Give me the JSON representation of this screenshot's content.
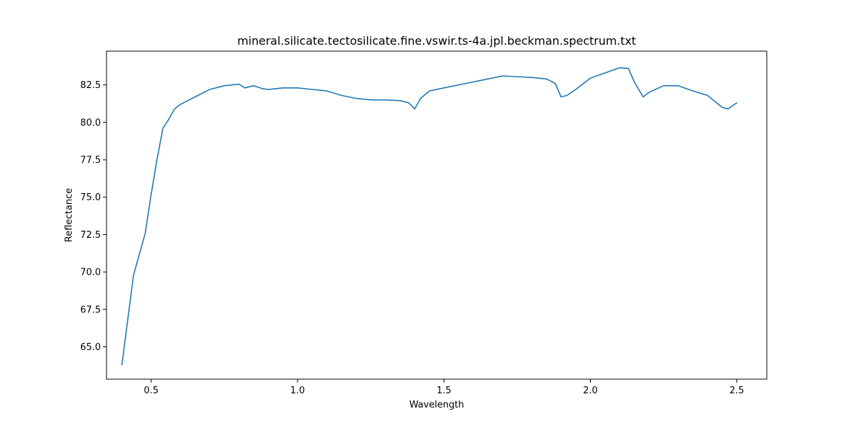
{
  "chart_data": {
    "type": "line",
    "title": "mineral.silicate.tectosilicate.fine.vswir.ts-4a.jpl.beckman.spectrum.txt",
    "xlabel": "Wavelength",
    "ylabel": "Reflectance",
    "xlim": [
      0.3475,
      2.6025
    ],
    "ylim": [
      62.84,
      84.76
    ],
    "xticks": [
      0.5,
      1.0,
      1.5,
      2.0,
      2.5
    ],
    "xtick_labels": [
      "0.5",
      "1.0",
      "1.5",
      "2.0",
      "2.5"
    ],
    "yticks": [
      65.0,
      67.5,
      70.0,
      72.5,
      75.0,
      77.5,
      80.0,
      82.5
    ],
    "ytick_labels": [
      "65.0",
      "67.5",
      "70.0",
      "72.5",
      "75.0",
      "77.5",
      "80.0",
      "82.5"
    ],
    "grid": false,
    "series_color": "#1f77b4",
    "series": [
      {
        "x": [
          0.4,
          0.42,
          0.44,
          0.46,
          0.48,
          0.5,
          0.52,
          0.54,
          0.56,
          0.58,
          0.6,
          0.62,
          0.65,
          0.7,
          0.75,
          0.8,
          0.82,
          0.85,
          0.88,
          0.9,
          0.95,
          1.0,
          1.05,
          1.1,
          1.15,
          1.2,
          1.25,
          1.3,
          1.35,
          1.38,
          1.4,
          1.42,
          1.45,
          1.5,
          1.55,
          1.6,
          1.65,
          1.7,
          1.75,
          1.8,
          1.85,
          1.88,
          1.9,
          1.92,
          1.95,
          2.0,
          2.05,
          2.1,
          2.13,
          2.15,
          2.18,
          2.2,
          2.25,
          2.3,
          2.35,
          2.4,
          2.45,
          2.47,
          2.5
        ],
        "y": [
          63.8,
          66.8,
          69.8,
          71.2,
          72.6,
          75.2,
          77.5,
          79.6,
          80.2,
          80.9,
          81.2,
          81.4,
          81.7,
          82.2,
          82.45,
          82.55,
          82.3,
          82.45,
          82.25,
          82.2,
          82.3,
          82.3,
          82.2,
          82.1,
          81.8,
          81.6,
          81.5,
          81.5,
          81.45,
          81.3,
          80.9,
          81.6,
          82.1,
          82.3,
          82.5,
          82.7,
          82.9,
          83.1,
          83.05,
          83.0,
          82.9,
          82.6,
          81.7,
          81.8,
          82.2,
          82.95,
          83.3,
          83.65,
          83.6,
          82.7,
          81.7,
          82.0,
          82.45,
          82.45,
          82.1,
          81.8,
          81.0,
          80.9,
          81.3
        ]
      }
    ]
  }
}
